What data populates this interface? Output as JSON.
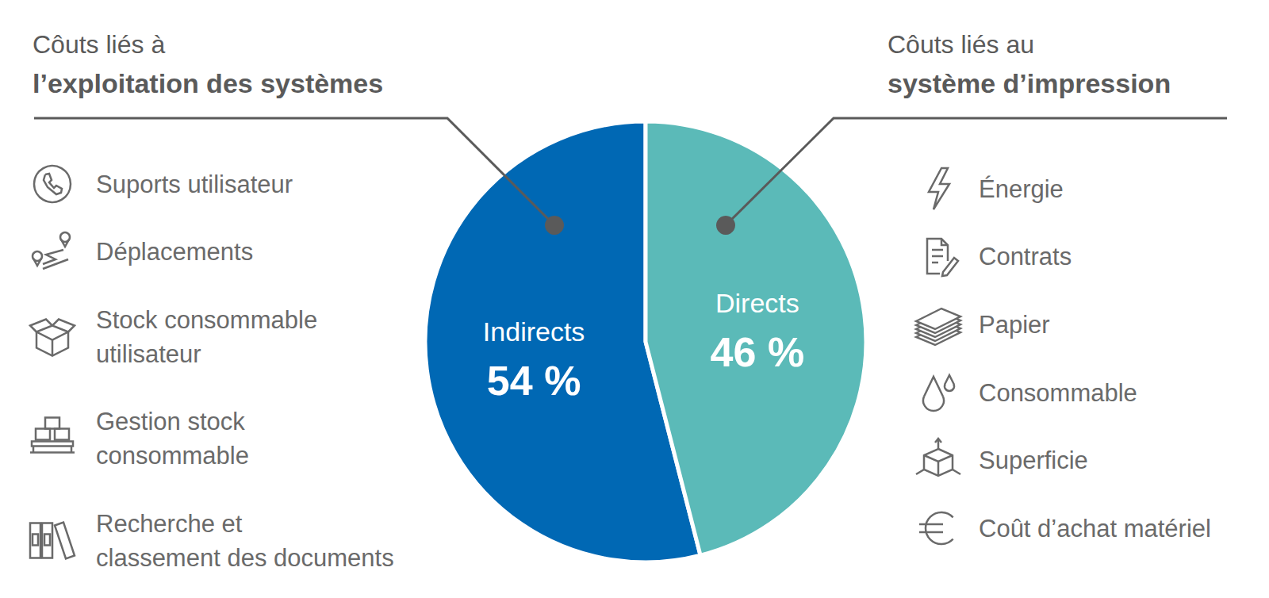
{
  "chart_data": {
    "type": "pie",
    "categories": [
      "Indirects",
      "Directs"
    ],
    "values": [
      54,
      46
    ],
    "value_labels": [
      "54 %",
      "46 %"
    ],
    "colors": [
      "#0068b4",
      "#5bbab8"
    ],
    "data_labels": true,
    "annotations": [
      {
        "title": [
          "Côuts liés à",
          "l’exploitation des systèmes"
        ],
        "items": [
          [
            "Suports utilisateur"
          ],
          [
            "Déplacements"
          ],
          [
            "Stock consommable",
            "utilisateur"
          ],
          [
            "Gestion stock",
            "consommable"
          ],
          [
            "Recherche et",
            "classement des documents"
          ]
        ]
      },
      {
        "title": [
          "Côuts liés au",
          "système d’impression"
        ],
        "items": [
          [
            "Énergie"
          ],
          [
            "Contrats"
          ],
          [
            "Papier"
          ],
          [
            "Consommable"
          ],
          [
            "Superficie"
          ],
          [
            "Coût d’achat matériel"
          ]
        ]
      }
    ]
  }
}
